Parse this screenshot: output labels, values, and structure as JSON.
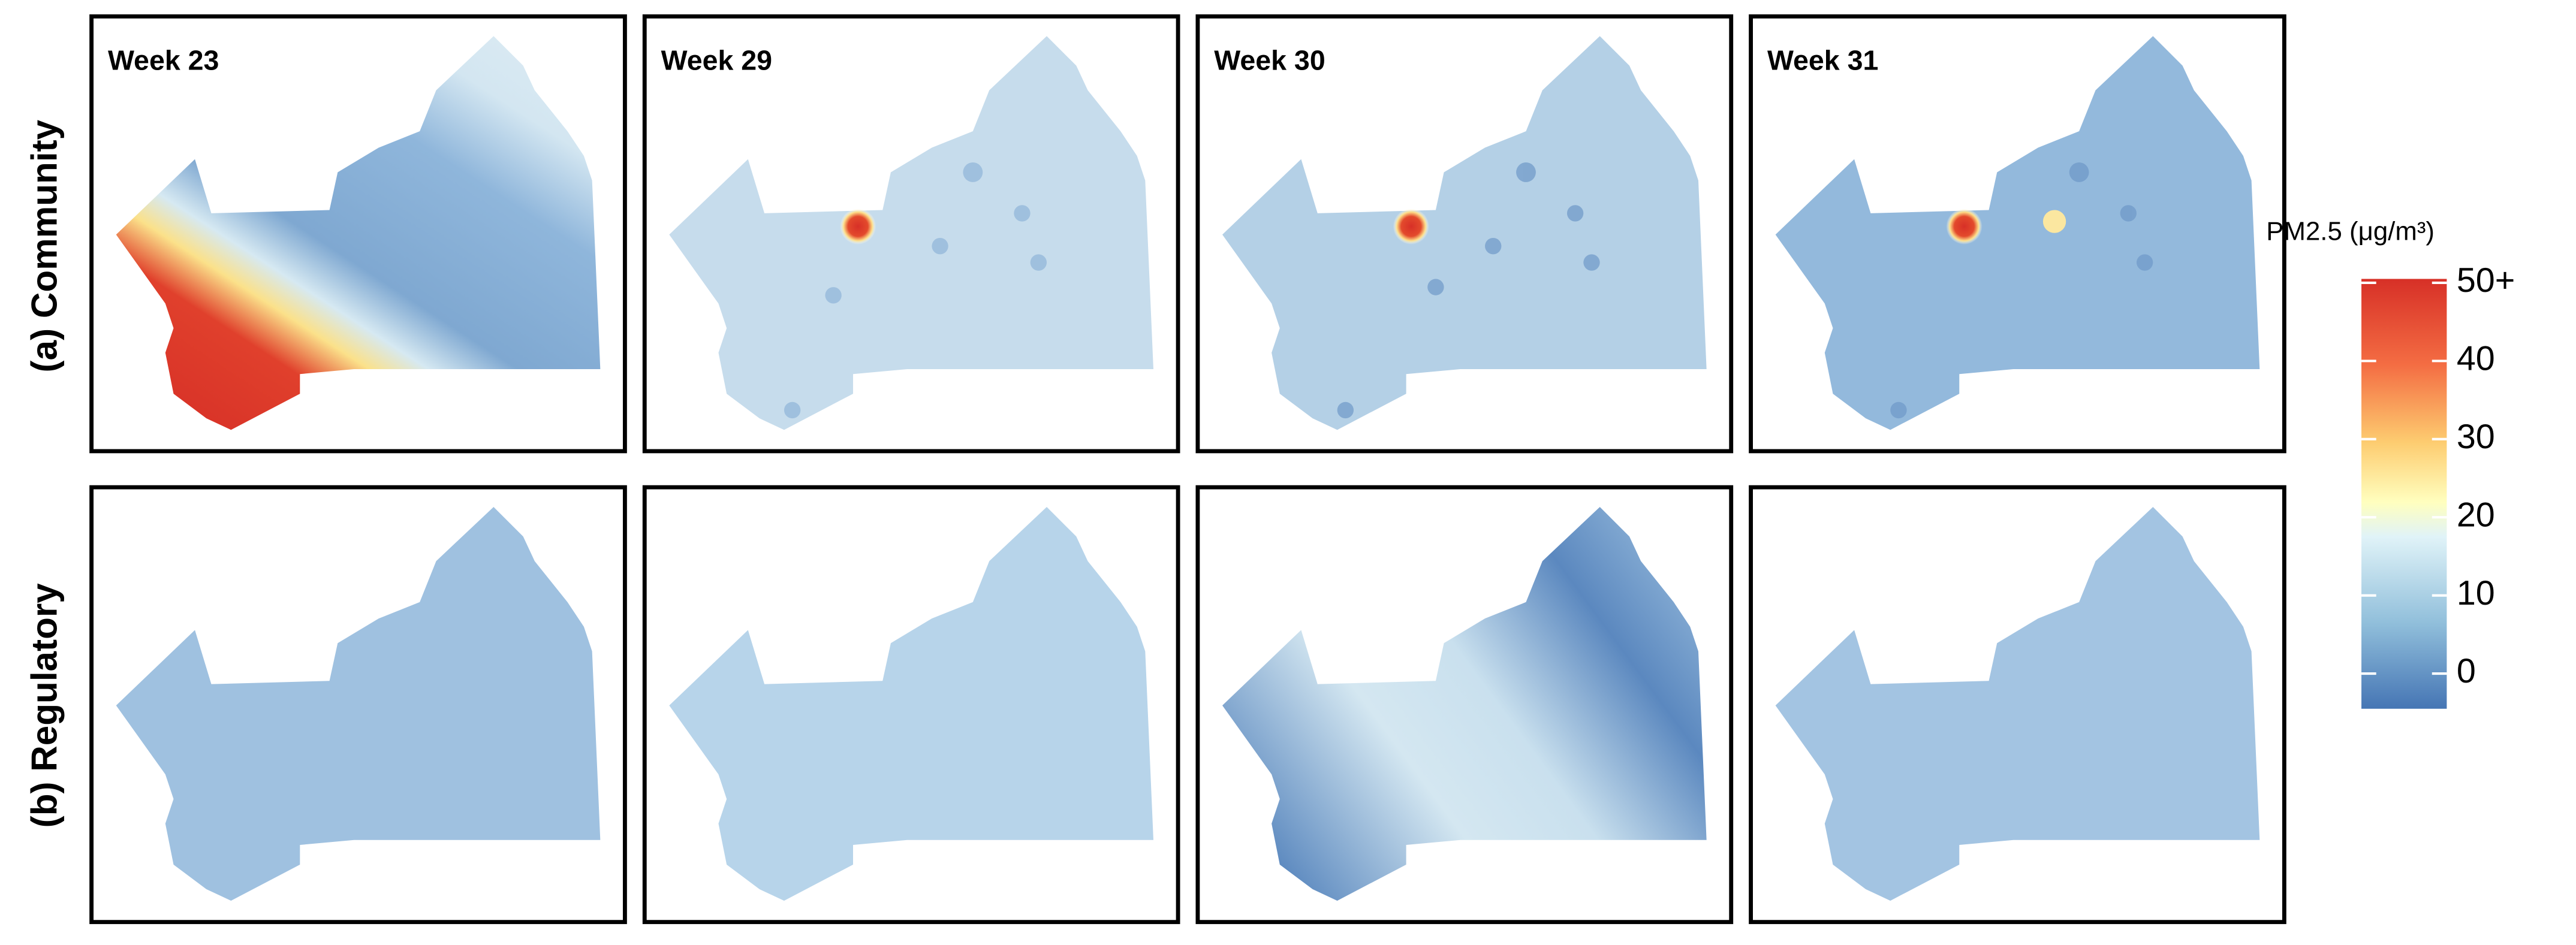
{
  "row_labels": [
    "(a) Community",
    "(b) Regulatory"
  ],
  "panels": [
    {
      "title": "Week 23"
    },
    {
      "title": "Week 29"
    },
    {
      "title": "Week 30"
    },
    {
      "title": "Week 31"
    }
  ],
  "legend": {
    "title": "PM2.5 (μg/m³)",
    "range": [
      -4.5,
      50.5
    ],
    "ticks": [
      0,
      10,
      20,
      30,
      40,
      {
        "value": 50,
        "label": "50+"
      }
    ]
  }
}
